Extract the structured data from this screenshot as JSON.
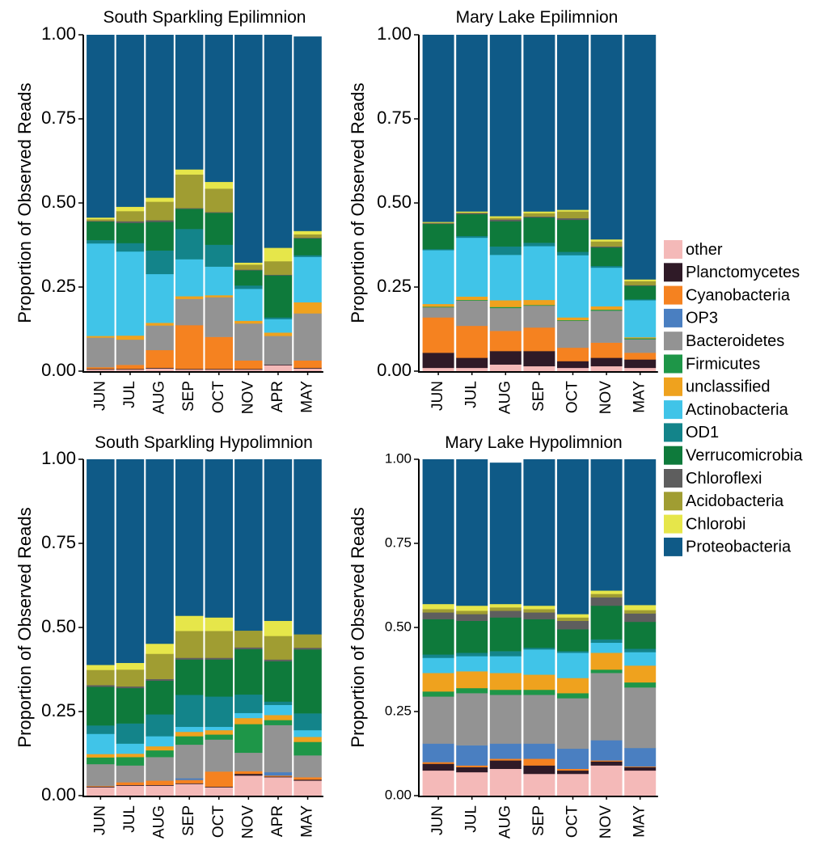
{
  "legend": {
    "items": [
      {
        "label": "other",
        "color": "#F4B9B8"
      },
      {
        "label": "Planctomycetes",
        "color": "#2F1A27"
      },
      {
        "label": "Cyanobacteria",
        "color": "#F58220"
      },
      {
        "label": "OP3",
        "color": "#4A7FC1"
      },
      {
        "label": "Bacteroidetes",
        "color": "#939393"
      },
      {
        "label": "Firmicutes",
        "color": "#1E9648"
      },
      {
        "label": "unclassified",
        "color": "#EFA21E"
      },
      {
        "label": "Actinobacteria",
        "color": "#40C4E8"
      },
      {
        "label": "OD1",
        "color": "#13848A"
      },
      {
        "label": "Verrucomicrobia",
        "color": "#0E7A3B"
      },
      {
        "label": "Chloroflexi",
        "color": "#5E5E5E"
      },
      {
        "label": "Acidobacteria",
        "color": "#A09D32"
      },
      {
        "label": "Chlorobi",
        "color": "#E6E64A"
      },
      {
        "label": "Proteobacteria",
        "color": "#0F5A87"
      }
    ]
  },
  "chart_data": [
    {
      "type": "bar",
      "stacked": true,
      "title": "South Sparkling Epilimnion",
      "ylabel": "Proportion of Observed Reads",
      "ylim": [
        0,
        1
      ],
      "yticks": [
        "0.00",
        "0.25",
        "0.50",
        "0.75",
        "1.00"
      ],
      "categories": [
        "JUN",
        "JUL",
        "AUG",
        "SEP",
        "OCT",
        "NOV",
        "APR",
        "MAY"
      ],
      "series": [
        {
          "name": "other",
          "values": [
            0.005,
            0.005,
            0.008,
            0.005,
            0.005,
            0.005,
            0.018,
            0.008
          ]
        },
        {
          "name": "Planctomycetes",
          "values": [
            0.002,
            0.002,
            0.002,
            0.002,
            0.002,
            0.002,
            0.002,
            0.002
          ]
        },
        {
          "name": "Cyanobacteria",
          "values": [
            0.005,
            0.012,
            0.053,
            0.13,
            0.095,
            0.025,
            0.0,
            0.022
          ]
        },
        {
          "name": "OP3",
          "values": [
            0.0,
            0.0,
            0.0,
            0.0,
            0.0,
            0.0,
            0.0,
            0.0
          ]
        },
        {
          "name": "Bacteroidetes",
          "values": [
            0.088,
            0.075,
            0.073,
            0.078,
            0.118,
            0.11,
            0.085,
            0.14
          ]
        },
        {
          "name": "Firmicutes",
          "values": [
            0.0,
            0.0,
            0.0,
            0.0,
            0.0,
            0.0,
            0.0,
            0.0
          ]
        },
        {
          "name": "unclassified",
          "values": [
            0.005,
            0.012,
            0.008,
            0.008,
            0.006,
            0.008,
            0.01,
            0.033
          ]
        },
        {
          "name": "Actinobacteria",
          "values": [
            0.275,
            0.25,
            0.145,
            0.11,
            0.085,
            0.095,
            0.04,
            0.135
          ]
        },
        {
          "name": "OD1",
          "values": [
            0.01,
            0.025,
            0.07,
            0.09,
            0.065,
            0.01,
            0.005,
            0.005
          ]
        },
        {
          "name": "Verrucomicrobia",
          "values": [
            0.055,
            0.06,
            0.085,
            0.06,
            0.095,
            0.045,
            0.125,
            0.05
          ]
        },
        {
          "name": "Chloroflexi",
          "values": [
            0.002,
            0.005,
            0.005,
            0.002,
            0.002,
            0.002,
            0.002,
            0.002
          ]
        },
        {
          "name": "Acidobacteria",
          "values": [
            0.005,
            0.03,
            0.055,
            0.1,
            0.07,
            0.015,
            0.04,
            0.01
          ]
        },
        {
          "name": "Chlorobi",
          "values": [
            0.005,
            0.013,
            0.012,
            0.015,
            0.02,
            0.006,
            0.04,
            0.01
          ]
        },
        {
          "name": "Proteobacteria",
          "values": [
            0.543,
            0.511,
            0.484,
            0.4,
            0.437,
            0.677,
            0.633,
            0.578
          ]
        }
      ]
    },
    {
      "type": "bar",
      "stacked": true,
      "title": "Mary Lake Epilimnion",
      "ylabel": "Proportion of Observed Reads",
      "ylim": [
        0,
        1
      ],
      "yticks": [
        "0.00",
        "0.25",
        "0.50",
        "0.75",
        "1.00"
      ],
      "categories": [
        "JUN",
        "JUL",
        "AUG",
        "SEP",
        "OCT",
        "NOV",
        "MAY"
      ],
      "series": [
        {
          "name": "other",
          "values": [
            0.01,
            0.01,
            0.02,
            0.015,
            0.01,
            0.015,
            0.01
          ]
        },
        {
          "name": "Planctomycetes",
          "values": [
            0.045,
            0.03,
            0.04,
            0.045,
            0.02,
            0.025,
            0.025
          ]
        },
        {
          "name": "Cyanobacteria",
          "values": [
            0.105,
            0.095,
            0.06,
            0.07,
            0.04,
            0.045,
            0.02
          ]
        },
        {
          "name": "OP3",
          "values": [
            0.0,
            0.0,
            0.0,
            0.0,
            0.0,
            0.0,
            0.0
          ]
        },
        {
          "name": "Bacteroidetes",
          "values": [
            0.03,
            0.075,
            0.068,
            0.065,
            0.08,
            0.095,
            0.04
          ]
        },
        {
          "name": "Firmicutes",
          "values": [
            0.002,
            0.002,
            0.003,
            0.002,
            0.002,
            0.003,
            0.003
          ]
        },
        {
          "name": "unclassified",
          "values": [
            0.008,
            0.01,
            0.02,
            0.015,
            0.008,
            0.01,
            0.003
          ]
        },
        {
          "name": "Actinobacteria",
          "values": [
            0.16,
            0.175,
            0.135,
            0.16,
            0.185,
            0.115,
            0.11
          ]
        },
        {
          "name": "OD1",
          "values": [
            0.003,
            0.005,
            0.025,
            0.01,
            0.01,
            0.005,
            0.003
          ]
        },
        {
          "name": "Verrucomicrobia",
          "values": [
            0.075,
            0.065,
            0.075,
            0.075,
            0.095,
            0.055,
            0.04
          ]
        },
        {
          "name": "Chloroflexi",
          "values": [
            0.002,
            0.003,
            0.005,
            0.003,
            0.005,
            0.003,
            0.002
          ]
        },
        {
          "name": "Acidobacteria",
          "values": [
            0.002,
            0.002,
            0.005,
            0.01,
            0.02,
            0.015,
            0.012
          ]
        },
        {
          "name": "Chlorobi",
          "values": [
            0.002,
            0.003,
            0.005,
            0.005,
            0.005,
            0.006,
            0.005
          ]
        },
        {
          "name": "Proteobacteria",
          "values": [
            0.556,
            0.525,
            0.539,
            0.525,
            0.52,
            0.608,
            0.727
          ]
        }
      ]
    },
    {
      "type": "bar",
      "stacked": true,
      "title": "South Sparkling Hypolimnion",
      "ylabel": "Proportion of Observed Reads",
      "ylim": [
        0,
        1
      ],
      "yticks": [
        "0.00",
        "0.25",
        "0.50",
        "0.75",
        "1.00"
      ],
      "categories": [
        "JUN",
        "JUL",
        "AUG",
        "SEP",
        "OCT",
        "NOV",
        "APR",
        "MAY"
      ],
      "series": [
        {
          "name": "other",
          "values": [
            0.025,
            0.03,
            0.03,
            0.035,
            0.025,
            0.06,
            0.055,
            0.045
          ]
        },
        {
          "name": "Planctomycetes",
          "values": [
            0.002,
            0.002,
            0.002,
            0.002,
            0.002,
            0.005,
            0.002,
            0.003
          ]
        },
        {
          "name": "Cyanobacteria",
          "values": [
            0.002,
            0.008,
            0.013,
            0.01,
            0.045,
            0.008,
            0.003,
            0.007
          ]
        },
        {
          "name": "OP3",
          "values": [
            0.0,
            0.0,
            0.0,
            0.005,
            0.0,
            0.0,
            0.01,
            0.0
          ]
        },
        {
          "name": "Bacteroidetes",
          "values": [
            0.065,
            0.05,
            0.07,
            0.1,
            0.095,
            0.055,
            0.14,
            0.065
          ]
        },
        {
          "name": "Firmicutes",
          "values": [
            0.02,
            0.025,
            0.02,
            0.025,
            0.015,
            0.085,
            0.015,
            0.04
          ]
        },
        {
          "name": "unclassified",
          "values": [
            0.01,
            0.01,
            0.012,
            0.013,
            0.013,
            0.018,
            0.015,
            0.015
          ]
        },
        {
          "name": "Actinobacteria",
          "values": [
            0.06,
            0.03,
            0.03,
            0.015,
            0.01,
            0.015,
            0.03,
            0.02
          ]
        },
        {
          "name": "OD1",
          "values": [
            0.025,
            0.06,
            0.065,
            0.095,
            0.09,
            0.055,
            0.01,
            0.05
          ]
        },
        {
          "name": "Verrucomicrobia",
          "values": [
            0.115,
            0.105,
            0.1,
            0.105,
            0.11,
            0.135,
            0.12,
            0.19
          ]
        },
        {
          "name": "Chloroflexi",
          "values": [
            0.005,
            0.005,
            0.005,
            0.005,
            0.005,
            0.005,
            0.005,
            0.005
          ]
        },
        {
          "name": "Acidobacteria",
          "values": [
            0.045,
            0.05,
            0.075,
            0.08,
            0.08,
            0.05,
            0.07,
            0.04
          ]
        },
        {
          "name": "Chlorobi",
          "values": [
            0.015,
            0.02,
            0.03,
            0.045,
            0.04,
            0.0,
            0.045,
            0.0
          ]
        },
        {
          "name": "Proteobacteria",
          "values": [
            0.611,
            0.605,
            0.548,
            0.465,
            0.47,
            0.509,
            0.48,
            0.52
          ]
        }
      ]
    },
    {
      "type": "bar",
      "stacked": true,
      "title": "Mary Lake Hypolimnion",
      "ylabel": "Proportion of Observed Reads",
      "ylim": [
        0,
        1
      ],
      "yticks": [
        "0.00",
        "0.25",
        "0.50",
        "0.75",
        "1.00"
      ],
      "categories": [
        "JUN",
        "JUL",
        "AUG",
        "SEP",
        "OCT",
        "NOV",
        "MAY"
      ],
      "series": [
        {
          "name": "other",
          "values": [
            0.075,
            0.07,
            0.08,
            0.065,
            0.065,
            0.09,
            0.075
          ]
        },
        {
          "name": "Planctomycetes",
          "values": [
            0.02,
            0.015,
            0.025,
            0.025,
            0.01,
            0.012,
            0.01
          ]
        },
        {
          "name": "Cyanobacteria",
          "values": [
            0.005,
            0.005,
            0.005,
            0.02,
            0.005,
            0.003,
            0.002
          ]
        },
        {
          "name": "OP3",
          "values": [
            0.055,
            0.06,
            0.045,
            0.045,
            0.06,
            0.06,
            0.055
          ]
        },
        {
          "name": "Bacteroidetes",
          "values": [
            0.14,
            0.155,
            0.145,
            0.145,
            0.15,
            0.2,
            0.18
          ]
        },
        {
          "name": "Firmicutes",
          "values": [
            0.015,
            0.015,
            0.015,
            0.015,
            0.015,
            0.01,
            0.015
          ]
        },
        {
          "name": "unclassified",
          "values": [
            0.055,
            0.05,
            0.05,
            0.045,
            0.045,
            0.05,
            0.05
          ]
        },
        {
          "name": "Actinobacteria",
          "values": [
            0.045,
            0.045,
            0.05,
            0.075,
            0.075,
            0.03,
            0.04
          ]
        },
        {
          "name": "OD1",
          "values": [
            0.01,
            0.01,
            0.015,
            0.005,
            0.005,
            0.01,
            0.01
          ]
        },
        {
          "name": "Verrucomicrobia",
          "values": [
            0.105,
            0.095,
            0.1,
            0.085,
            0.065,
            0.1,
            0.08
          ]
        },
        {
          "name": "Chloroflexi",
          "values": [
            0.02,
            0.02,
            0.02,
            0.02,
            0.025,
            0.025,
            0.025
          ]
        },
        {
          "name": "Acidobacteria",
          "values": [
            0.01,
            0.01,
            0.01,
            0.01,
            0.01,
            0.01,
            0.01
          ]
        },
        {
          "name": "Chlorobi",
          "values": [
            0.015,
            0.015,
            0.01,
            0.01,
            0.01,
            0.01,
            0.015
          ]
        },
        {
          "name": "Proteobacteria",
          "values": [
            0.43,
            0.435,
            0.42,
            0.435,
            0.46,
            0.39,
            0.433
          ]
        }
      ]
    }
  ]
}
